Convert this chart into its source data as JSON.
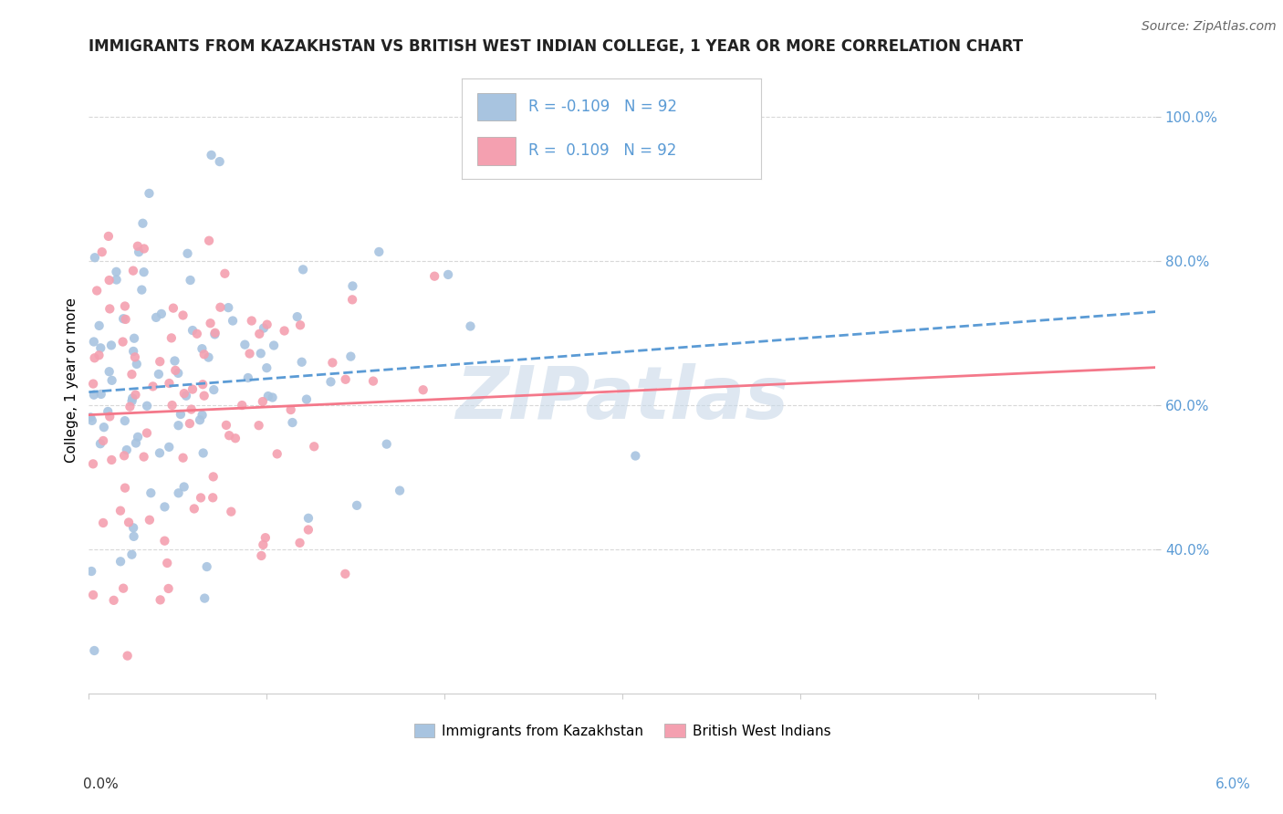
{
  "title": "IMMIGRANTS FROM KAZAKHSTAN VS BRITISH WEST INDIAN COLLEGE, 1 YEAR OR MORE CORRELATION CHART",
  "source": "Source: ZipAtlas.com",
  "ylabel": "College, 1 year or more",
  "xlim": [
    0.0,
    6.0
  ],
  "ylim": [
    20.0,
    107.0
  ],
  "yticks": [
    40.0,
    60.0,
    80.0,
    100.0
  ],
  "ytick_labels": [
    "40.0%",
    "60.0%",
    "80.0%",
    "100.0%"
  ],
  "blue_R": -0.109,
  "pink_R": 0.109,
  "N": 92,
  "blue_color": "#a8c4e0",
  "pink_color": "#f4a0b0",
  "blue_line_color": "#5b9bd5",
  "pink_line_color": "#f4788a",
  "watermark": "ZIPatlas",
  "watermark_color": "#c8d8e8",
  "legend_label_blue": "Immigrants from Kazakhstan",
  "legend_label_pink": "British West Indians",
  "background_color": "#ffffff",
  "grid_color": "#d8d8d8",
  "title_fontsize": 12,
  "source_fontsize": 10,
  "axis_label_fontsize": 11
}
